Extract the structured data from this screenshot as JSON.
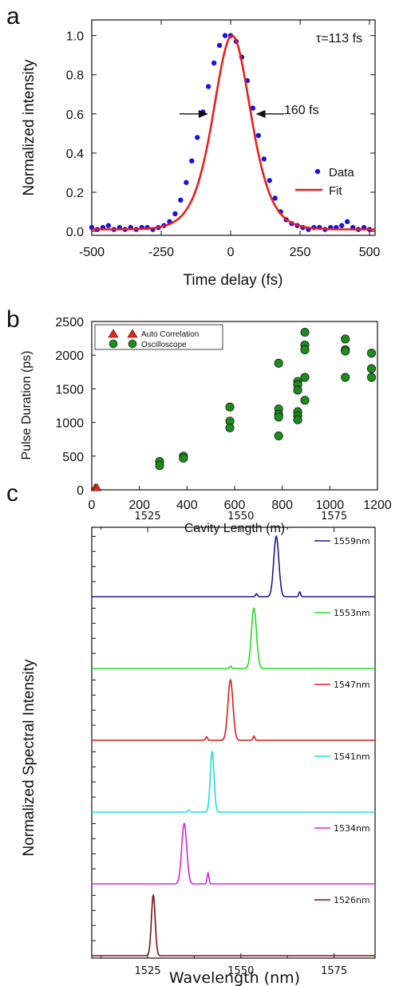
{
  "chart_data": [
    {
      "panel": "a",
      "type": "scatter",
      "xlabel": "Time delay (fs)",
      "ylabel": "Normalized intensity",
      "xlim": [
        -500,
        520
      ],
      "ylim": [
        -0.02,
        1.08
      ],
      "xticks": [
        -500,
        -250,
        0,
        250,
        500
      ],
      "yticks": [
        0.0,
        0.2,
        0.4,
        0.6,
        0.8,
        1.0
      ],
      "annotations": [
        "τ=113 fs",
        "160 fs"
      ],
      "fwhm_fs": 160,
      "series": [
        {
          "name": "Data",
          "kind": "points",
          "color": "#1515e0",
          "x": [
            -500,
            -480,
            -460,
            -440,
            -420,
            -400,
            -380,
            -360,
            -340,
            -320,
            -300,
            -280,
            -260,
            -240,
            -220,
            -200,
            -180,
            -160,
            -140,
            -120,
            -100,
            -80,
            -60,
            -40,
            -20,
            0,
            20,
            40,
            60,
            80,
            100,
            120,
            140,
            160,
            180,
            200,
            220,
            240,
            260,
            280,
            300,
            320,
            340,
            360,
            380,
            400,
            420,
            440,
            460,
            480,
            500
          ],
          "y": [
            0.02,
            0.01,
            0.02,
            0.03,
            0.01,
            0.02,
            0.01,
            0.02,
            0.01,
            0.02,
            0.02,
            0.01,
            0.02,
            0.03,
            0.05,
            0.09,
            0.16,
            0.25,
            0.36,
            0.48,
            0.61,
            0.74,
            0.86,
            0.95,
            1.0,
            1.0,
            0.97,
            0.89,
            0.77,
            0.63,
            0.49,
            0.37,
            0.26,
            0.17,
            0.1,
            0.06,
            0.04,
            0.03,
            0.02,
            0.01,
            0.02,
            0.02,
            0.01,
            0.02,
            0.02,
            0.03,
            0.05,
            0.02,
            0.01,
            0.02,
            0.01
          ]
        },
        {
          "name": "Fit",
          "kind": "line",
          "color": "#ee1c1c",
          "shape": "sech2",
          "center_fs": 5,
          "fwhm_fs": 160,
          "amplitude": 1.0,
          "baseline": 0.01
        }
      ],
      "legend": "bottom-right"
    },
    {
      "panel": "b",
      "type": "scatter",
      "xlabel": "Cavity Length (m)",
      "ylabel": "Pulse Duration (ps)",
      "xlim": [
        0,
        1200
      ],
      "ylim": [
        0,
        2500
      ],
      "xticks": [
        0,
        200,
        400,
        600,
        800,
        1000,
        1200
      ],
      "yticks": [
        0,
        500,
        1000,
        1500,
        2000,
        2500
      ],
      "series": [
        {
          "name": "Auto Correlation",
          "marker": "triangle",
          "color": "#e8231c",
          "x": [
            14,
            22
          ],
          "y": [
            10,
            10
          ]
        },
        {
          "name": "Oscilloscope",
          "marker": "circle",
          "color": "#1f8a1f",
          "x": [
            285,
            285,
            385,
            385,
            580,
            580,
            580,
            785,
            785,
            785,
            785,
            785,
            865,
            865,
            865,
            865,
            865,
            865,
            895,
            895,
            895,
            895,
            895,
            1065,
            1065,
            1065,
            1065,
            1175,
            1175,
            1175
          ],
          "y": [
            420,
            360,
            500,
            470,
            1230,
            1020,
            920,
            1880,
            1200,
            1120,
            1080,
            800,
            1610,
            1560,
            1480,
            1160,
            1100,
            1040,
            2340,
            2150,
            2080,
            1670,
            1330,
            2240,
            2080,
            2060,
            1670,
            2030,
            1800,
            1670
          ]
        }
      ],
      "legend": "top-left"
    },
    {
      "panel": "c",
      "type": "line",
      "xlabel": "Wavelength (nm)",
      "ylabel": "Normalized Spectral Intensity",
      "xlim": [
        1510,
        1586
      ],
      "xticks": [
        1525,
        1550,
        1575
      ],
      "series": [
        {
          "name": "1559nm",
          "center": 1559.5,
          "width": 1.6,
          "color": "#1a1a8c",
          "side": [
            [
              1554.2,
              0.05
            ],
            [
              1565.8,
              0.08
            ]
          ]
        },
        {
          "name": "1553nm",
          "center": 1553.5,
          "width": 1.6,
          "color": "#22dd22",
          "side": [
            [
              1547.2,
              0.04
            ]
          ]
        },
        {
          "name": "1547nm",
          "center": 1547.2,
          "width": 1.6,
          "color": "#dd1a1a",
          "side": [
            [
              1540.8,
              0.06
            ],
            [
              1553.5,
              0.07
            ]
          ]
        },
        {
          "name": "1541nm",
          "center": 1542.3,
          "width": 1.2,
          "color": "#22dddd",
          "side": [
            [
              1536.0,
              0.03
            ]
          ]
        },
        {
          "name": "1534nm",
          "center": 1534.8,
          "width": 1.6,
          "color": "#dd22dd",
          "side": [
            [
              1541.2,
              0.18
            ]
          ]
        },
        {
          "name": "1526nm",
          "center": 1526.5,
          "width": 1.2,
          "color": "#7a1010",
          "side": []
        }
      ],
      "legend": "per-trace labels right"
    }
  ],
  "panel_labels": [
    "a",
    "b",
    "c"
  ]
}
